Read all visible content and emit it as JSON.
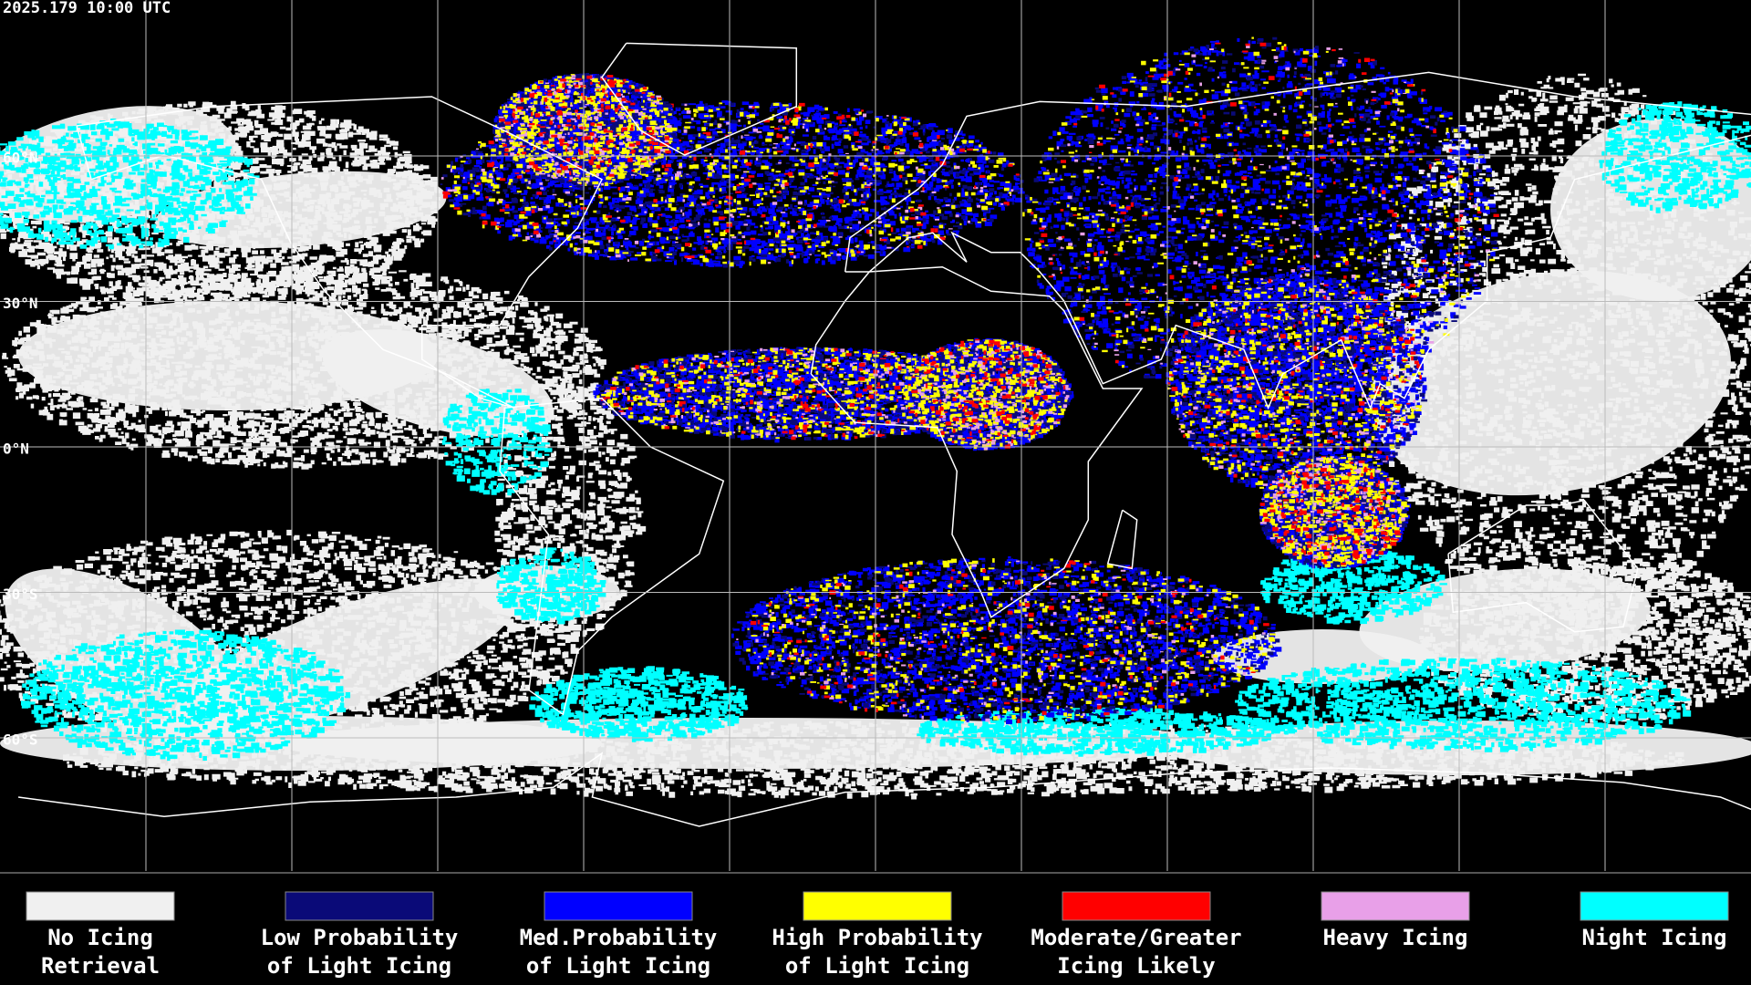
{
  "header": {
    "timestamp": "2025.179 10:00 UTC"
  },
  "map": {
    "lat_labels": [
      "60°N",
      "30°N",
      "0°N",
      "30°S",
      "60°S"
    ]
  },
  "legend": {
    "items": [
      {
        "lines": [
          "No Icing",
          "Retrieval"
        ],
        "color": "#f0f0f0"
      },
      {
        "lines": [
          "Low Probability",
          "of Light Icing"
        ],
        "color": "#0a0a78"
      },
      {
        "lines": [
          "Med.Probability",
          "of Light Icing"
        ],
        "color": "#0000ff"
      },
      {
        "lines": [
          "High Probability",
          "of Light Icing"
        ],
        "color": "#ffff00"
      },
      {
        "lines": [
          "Moderate/Greater",
          "Icing Likely"
        ],
        "color": "#ff0000"
      },
      {
        "lines": [
          "Heavy Icing"
        ],
        "color": "#e8a0e8"
      },
      {
        "lines": [
          "Night Icing"
        ],
        "color": "#00ffff"
      }
    ]
  }
}
